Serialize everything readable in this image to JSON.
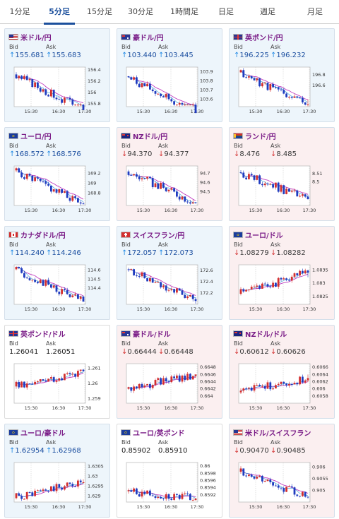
{
  "tabs": [
    {
      "label": "1分足",
      "active": false
    },
    {
      "label": "5分足",
      "active": true
    },
    {
      "label": "15分足",
      "active": false
    },
    {
      "label": "30分足",
      "active": false
    },
    {
      "label": "1時間足",
      "active": false
    },
    {
      "label": "日足",
      "active": false
    },
    {
      "label": "週足",
      "active": false
    },
    {
      "label": "月足",
      "active": false
    }
  ],
  "labels": {
    "bid": "Bid",
    "ask": "Ask"
  },
  "colors": {
    "up_arrow": "#1e88e5",
    "down_arrow": "#d32f2f",
    "candle_up": "#d32f2f",
    "candle_down": "#1f3bbf",
    "ma": "#c03fc0",
    "trend": "#2e9bd6"
  },
  "cards": [
    {
      "pair": "米ドル/円",
      "flag": "us",
      "dir": "up",
      "bid": "155.681",
      "ask": "155.683",
      "chart_data": {
        "type": "candlestick",
        "xticks": [
          "15:30",
          "16:30",
          "17:30"
        ],
        "yticks": [
          "156.4",
          "156.2",
          "156",
          "155.8"
        ],
        "ylim": [
          155.75,
          156.45
        ],
        "start": 156.32,
        "end": 155.69,
        "seed": 3
      }
    },
    {
      "pair": "豪ドル/円",
      "flag": "au",
      "dir": "up",
      "bid": "103.440",
      "ask": "103.445",
      "chart_data": {
        "type": "candlestick",
        "xticks": [
          "15:30",
          "16:30",
          "17:30"
        ],
        "yticks": [
          "103.9",
          "103.8",
          "103.7",
          "103.6"
        ],
        "ylim": [
          103.52,
          103.95
        ],
        "start": 103.85,
        "end": 103.45,
        "seed": 7
      }
    },
    {
      "pair": "英ポンド/円",
      "flag": "gb",
      "dir": "up",
      "bid": "196.225",
      "ask": "196.232",
      "chart_data": {
        "type": "candlestick",
        "xticks": [
          "15:30",
          "16:30",
          "17:30"
        ],
        "yticks": [
          "196.8",
          "196.6"
        ],
        "ylim": [
          196.2,
          196.95
        ],
        "start": 196.85,
        "end": 196.24,
        "seed": 11
      }
    },
    {
      "pair": "ユーロ/円",
      "flag": "eu",
      "dir": "up",
      "bid": "168.572",
      "ask": "168.576",
      "chart_data": {
        "type": "candlestick",
        "xticks": [
          "15:30",
          "16:30",
          "17:30"
        ],
        "yticks": [
          "169.2",
          "169",
          "168.8"
        ],
        "ylim": [
          168.55,
          169.35
        ],
        "start": 169.26,
        "end": 168.58,
        "seed": 5
      }
    },
    {
      "pair": "NZドル/円",
      "flag": "nz",
      "dir": "down",
      "bid": "94.370",
      "ask": "94.377",
      "chart_data": {
        "type": "candlestick",
        "xticks": [
          "15:30",
          "16:30",
          "17:30"
        ],
        "yticks": [
          "94.7",
          "94.6",
          "94.5"
        ],
        "ylim": [
          94.35,
          94.78
        ],
        "start": 94.72,
        "end": 94.38,
        "seed": 9
      }
    },
    {
      "pair": "ランド/円",
      "flag": "za",
      "dir": "down",
      "bid": "8.476",
      "ask": "8.485",
      "chart_data": {
        "type": "candlestick",
        "xticks": [
          "15:30",
          "16:30",
          "17:30"
        ],
        "yticks": [
          "8.51",
          "8.5"
        ],
        "ylim": [
          8.47,
          8.52
        ],
        "start": 8.512,
        "end": 8.478,
        "seed": 13
      }
    },
    {
      "pair": "カナダドル/円",
      "flag": "ca",
      "dir": "up",
      "bid": "114.240",
      "ask": "114.246",
      "chart_data": {
        "type": "candlestick",
        "xticks": [
          "15:30",
          "16:30",
          "17:30"
        ],
        "yticks": [
          "114.6",
          "114.5",
          "114.4"
        ],
        "ylim": [
          114.22,
          114.66
        ],
        "start": 114.61,
        "end": 114.25,
        "seed": 17
      }
    },
    {
      "pair": "スイスフラン/円",
      "flag": "ch",
      "dir": "up",
      "bid": "172.057",
      "ask": "172.073",
      "chart_data": {
        "type": "candlestick",
        "xticks": [
          "15:30",
          "16:30",
          "17:30"
        ],
        "yticks": [
          "172.6",
          "172.4",
          "172.2"
        ],
        "ylim": [
          172.0,
          172.7
        ],
        "start": 172.62,
        "end": 172.06,
        "seed": 19
      }
    },
    {
      "pair": "ユーロ/ドル",
      "flag": "eu",
      "dir": "down",
      "bid": "1.08279",
      "ask": "1.08282",
      "chart_data": {
        "type": "candlestick",
        "xticks": [
          "15:30",
          "16:30",
          "17:30"
        ],
        "yticks": [
          "1.0835",
          "1.083",
          "1.0825"
        ],
        "ylim": [
          1.0822,
          1.0837
        ],
        "start": 1.0826,
        "end": 1.0834,
        "seed": 23
      }
    },
    {
      "pair": "英ポンド/ドル",
      "flag": "gb",
      "dir": "flat",
      "bid": "1.26041",
      "ask": "1.26051",
      "chart_data": {
        "type": "candlestick",
        "xticks": [
          "15:30",
          "16:30",
          "17:30"
        ],
        "yticks": [
          "1.261",
          "1.26",
          "1.259"
        ],
        "ylim": [
          1.2587,
          1.2613
        ],
        "start": 1.2598,
        "end": 1.2608,
        "seed": 29
      }
    },
    {
      "pair": "豪ドル/ドル",
      "flag": "au",
      "dir": "down",
      "bid": "0.66444",
      "ask": "0.66448",
      "chart_data": {
        "type": "candlestick",
        "xticks": [
          "15:30",
          "16:30",
          "17:30"
        ],
        "yticks": [
          "0.6648",
          "0.6646",
          "0.6644",
          "0.6642",
          "0.664"
        ],
        "ylim": [
          0.6638,
          0.6649
        ],
        "start": 0.6642,
        "end": 0.6646,
        "seed": 31
      }
    },
    {
      "pair": "NZドル/ドル",
      "flag": "nz",
      "dir": "down",
      "bid": "0.60612",
      "ask": "0.60626",
      "chart_data": {
        "type": "candlestick",
        "xticks": [
          "15:30",
          "16:30",
          "17:30"
        ],
        "yticks": [
          "0.6066",
          "0.6064",
          "0.6062",
          "0.606",
          "0.6058"
        ],
        "ylim": [
          0.6056,
          0.6067
        ],
        "start": 0.6059,
        "end": 0.6063,
        "seed": 37
      }
    },
    {
      "pair": "ユーロ/豪ドル",
      "flag": "eu",
      "dir": "up",
      "bid": "1.62954",
      "ask": "1.62968",
      "chart_data": {
        "type": "candlestick",
        "xticks": [
          "15:30",
          "16:30",
          "17:30"
        ],
        "yticks": [
          "1.6305",
          "1.63",
          "1.6295",
          "1.629"
        ],
        "ylim": [
          1.6287,
          1.6307
        ],
        "start": 1.6289,
        "end": 1.6297,
        "seed": 41
      }
    },
    {
      "pair": "ユーロ/英ポンド",
      "flag": "eu",
      "dir": "flat",
      "bid": "0.85902",
      "ask": "0.85910",
      "chart_data": {
        "type": "candlestick",
        "xticks": [
          "15:30",
          "16:30",
          "17:30"
        ],
        "yticks": [
          "0.86",
          "0.8598",
          "0.8596",
          "0.8594",
          "0.8592"
        ],
        "ylim": [
          0.859,
          0.8601
        ],
        "start": 0.8593,
        "end": 0.8591,
        "seed": 43
      }
    },
    {
      "pair": "米ドル/スイスフラン",
      "flag": "us",
      "dir": "down",
      "bid": "0.90470",
      "ask": "0.90485",
      "chart_data": {
        "type": "candlestick",
        "xticks": [
          "15:30",
          "16:30",
          "17:30"
        ],
        "yticks": [
          "0.906",
          "0.9055",
          "0.905"
        ],
        "ylim": [
          0.9045,
          0.9062
        ],
        "start": 0.9058,
        "end": 0.9047,
        "seed": 47
      }
    }
  ]
}
